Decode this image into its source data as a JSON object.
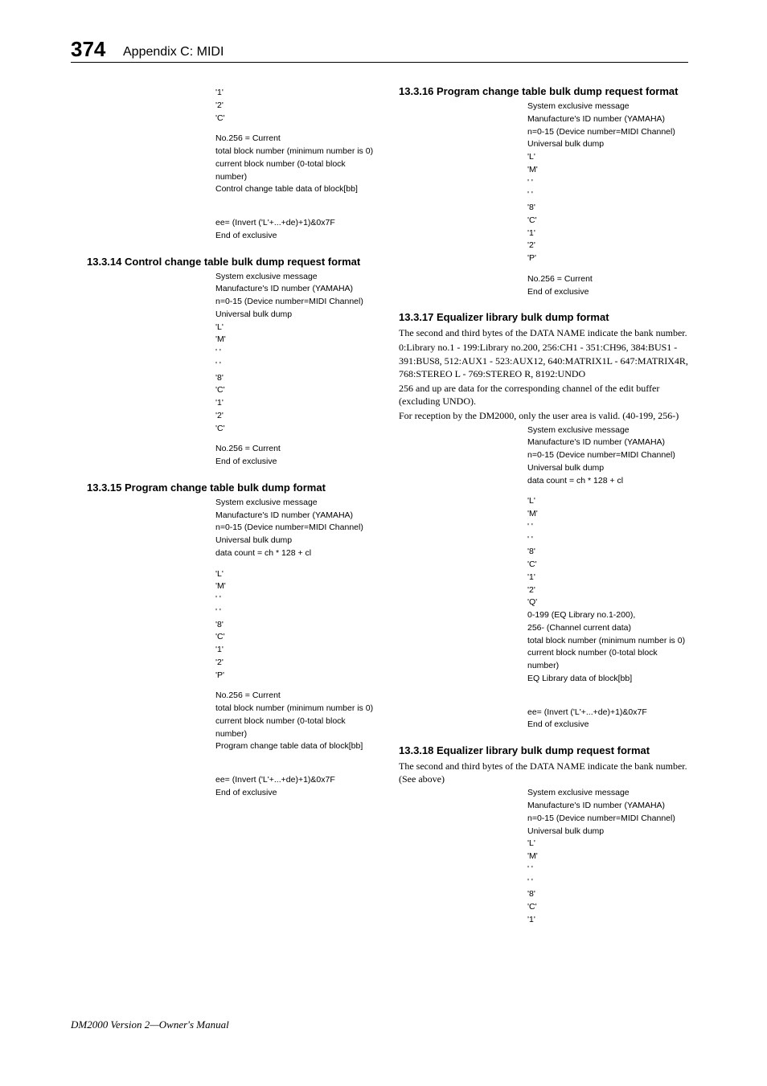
{
  "header": {
    "page_number": "374",
    "running": "Appendix C: MIDI"
  },
  "footer": {
    "text": "DM2000 Version 2—Owner's Manual"
  },
  "s13": {
    "lines": [
      "'1'",
      "'2'",
      "'C'",
      "No.256 = Current",
      "total block number (minimum number is 0)",
      "current block number (0-total block number)",
      "Control change table data of block[bb]",
      "ee= (Invert ('L'+...+de)+1)&0x7F",
      "End of exclusive"
    ]
  },
  "s14": {
    "title": "13.3.14 Control change table bulk dump request format",
    "lines": [
      "System exclusive message",
      "Manufacture's ID number (YAMAHA)",
      "n=0-15 (Device number=MIDI Channel)",
      "Universal bulk dump",
      "'L'",
      "'M'",
      "' '",
      "' '",
      "'8'",
      "'C'",
      "'1'",
      "'2'",
      "'C'",
      "No.256 = Current",
      "End of exclusive"
    ]
  },
  "s15": {
    "title": "13.3.15 Program change table bulk dump format",
    "lines": [
      "System exclusive message",
      "Manufacture's ID number (YAMAHA)",
      "n=0-15 (Device number=MIDI Channel)",
      "Universal bulk dump",
      "data count = ch * 128 + cl",
      "'L'",
      "'M'",
      "' '",
      "' '",
      "'8'",
      "'C'",
      "'1'",
      "'2'",
      "'P'",
      "No.256 = Current",
      "total block number (minimum number is 0)",
      "current block number (0-total block number)",
      "Program change table data of block[bb]",
      "ee= (Invert ('L'+...+de)+1)&0x7F",
      "End of exclusive"
    ]
  },
  "s16": {
    "title": "13.3.16 Program change table bulk dump request format",
    "lines": [
      "System exclusive message",
      "Manufacture's ID number (YAMAHA)",
      "n=0-15 (Device number=MIDI Channel)",
      "Universal bulk dump",
      "'L'",
      "'M'",
      "' '",
      "' '",
      "'8'",
      "'C'",
      "'1'",
      "'2'",
      "'P'",
      "No.256 = Current",
      "End of exclusive"
    ]
  },
  "s17": {
    "title": "13.3.17 Equalizer library bulk dump format",
    "body": [
      "The second and third bytes of the DATA NAME indicate the bank number.",
      "0:Library no.1 - 199:Library no.200, 256:CH1 - 351:CH96, 384:BUS1 - 391:BUS8, 512:AUX1 - 523:AUX12, 640:MATRIX1L - 647:MATRIX4R, 768:STEREO L - 769:STEREO R, 8192:UNDO",
      "256 and up are data for the corresponding channel of the edit buffer (excluding UNDO).",
      "For reception by the DM2000, only the user area is valid. (40-199, 256-)"
    ],
    "lines": [
      "System exclusive message",
      "Manufacture's ID number (YAMAHA)",
      "n=0-15 (Device number=MIDI Channel)",
      "Universal bulk dump",
      "data count = ch * 128 + cl",
      "'L'",
      "'M'",
      "' '",
      "' '",
      "'8'",
      "'C'",
      "'1'",
      "'2'",
      "'Q'",
      "0-199 (EQ Library no.1-200),",
      "256- (Channel current data)",
      "total block number (minimum number is 0)",
      "current block number (0-total block number)",
      "EQ Library data of block[bb]",
      "ee= (Invert ('L'+...+de)+1)&0x7F",
      "End of exclusive"
    ]
  },
  "s18": {
    "title": "13.3.18 Equalizer library bulk dump request format",
    "body": [
      "The second and third bytes of the DATA NAME indicate the bank number. (See above)"
    ],
    "lines": [
      "System exclusive message",
      "Manufacture's ID number (YAMAHA)",
      "n=0-15 (Device number=MIDI Channel)",
      "Universal bulk dump",
      "'L'",
      "'M'",
      "' '",
      "' '",
      "'8'",
      "'C'",
      "'1'"
    ]
  }
}
